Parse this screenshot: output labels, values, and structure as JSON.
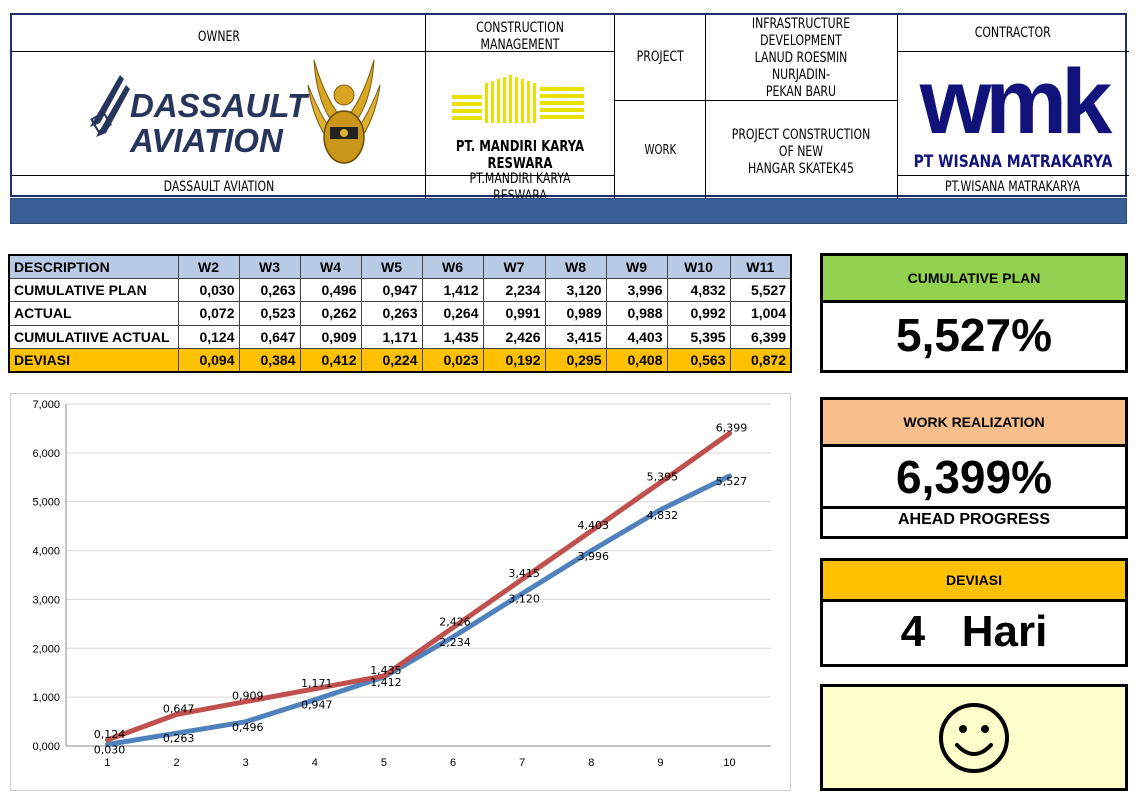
{
  "header": {
    "owner_title": "OWNER",
    "owner_logo_text": [
      "DASSAULT",
      "AVIATION"
    ],
    "owner_name": "DASSAULT AVIATION",
    "cm_title": "CONSTRUCTION MANAGEMENT",
    "cm_logo_caption": "PT. MANDIRI KARYA RESWARA",
    "cm_name": "PT.MANDIRI KARYA RESWARA",
    "project_label": "PROJECT",
    "project_value": [
      "INFRASTRUCTURE DEVELOPMENT",
      "LANUD ROESMIN NURJADIN-",
      "PEKAN BARU"
    ],
    "work_label": "WORK",
    "work_value": [
      "PROJECT CONSTRUCTION OF NEW",
      "HANGAR SKATEK45"
    ],
    "contractor_title": "CONTRACTOR",
    "contractor_logo_text": "wmk",
    "contractor_logo_caption": "PT WISANA MATRAKARYA",
    "contractor_name": "PT.WISANA MATRAKARYA"
  },
  "table": {
    "columns": [
      "DESCRIPTION",
      "W2",
      "W3",
      "W4",
      "W5",
      "W6",
      "W7",
      "W8",
      "W9",
      "W10",
      "W11"
    ],
    "rows": [
      {
        "label": "CUMULATIVE PLAN",
        "values": [
          "0,030",
          "0,263",
          "0,496",
          "0,947",
          "1,412",
          "2,234",
          "3,120",
          "3,996",
          "4,832",
          "5,527"
        ]
      },
      {
        "label": "ACTUAL",
        "values": [
          "0,072",
          "0,523",
          "0,262",
          "0,263",
          "0,264",
          "0,991",
          "0,989",
          "0,988",
          "0,992",
          "1,004"
        ]
      },
      {
        "label": "CUMULATIIVE ACTUAL",
        "values": [
          "0,124",
          "0,647",
          "0,909",
          "1,171",
          "1,435",
          "2,426",
          "3,415",
          "4,403",
          "5,395",
          "6,399"
        ]
      },
      {
        "label": "DEVIASI",
        "values": [
          "0,094",
          "0,384",
          "0,412",
          "0,224",
          "0,023",
          "0,192",
          "0,295",
          "0,408",
          "0,563",
          "0,872"
        ]
      }
    ]
  },
  "chart_data": {
    "type": "line",
    "x": [
      1,
      2,
      3,
      4,
      5,
      6,
      7,
      8,
      9,
      10
    ],
    "ylim": [
      0,
      7
    ],
    "y_ticks": [
      "0,000",
      "1,000",
      "2,000",
      "3,000",
      "4,000",
      "5,000",
      "6,000",
      "7,000"
    ],
    "x_ticks": [
      "1",
      "2",
      "3",
      "4",
      "5",
      "6",
      "7",
      "8",
      "9",
      "10"
    ],
    "grid": true,
    "series": [
      {
        "values": [
          0.03,
          0.263,
          0.496,
          0.947,
          1.412,
          2.234,
          3.12,
          3.996,
          4.832,
          5.527
        ],
        "labels": [
          "0,030",
          "0,263",
          "0,496",
          "0,947",
          "1,412",
          "2,234",
          "3,120",
          "3,996",
          "4,832",
          "5,527"
        ],
        "color": "#4f81bd"
      },
      {
        "values": [
          0.124,
          0.647,
          0.909,
          1.171,
          1.435,
          2.426,
          3.415,
          4.403,
          5.395,
          6.399
        ],
        "labels": [
          "0,124",
          "0,647",
          "0,909",
          "1,171",
          "1,435",
          "2,426",
          "3,415",
          "4,403",
          "5,395",
          "6,399"
        ],
        "color": "#c0504d"
      }
    ]
  },
  "panels": {
    "plan_title": "CUMULATIVE PLAN",
    "plan_value": "5,527%",
    "plan_color": "#92d050",
    "realization_title": "WORK REALIZATION",
    "realization_value": "6,399%",
    "realization_status": "AHEAD PROGRESS",
    "realization_color": "#f8bf8c",
    "deviasi_title": "DEVIASI",
    "deviasi_value": "4   Hari",
    "deviasi_color": "#ffc000",
    "mood_icon": "smiley-face-icon",
    "mood_color": "#ffffcc"
  }
}
